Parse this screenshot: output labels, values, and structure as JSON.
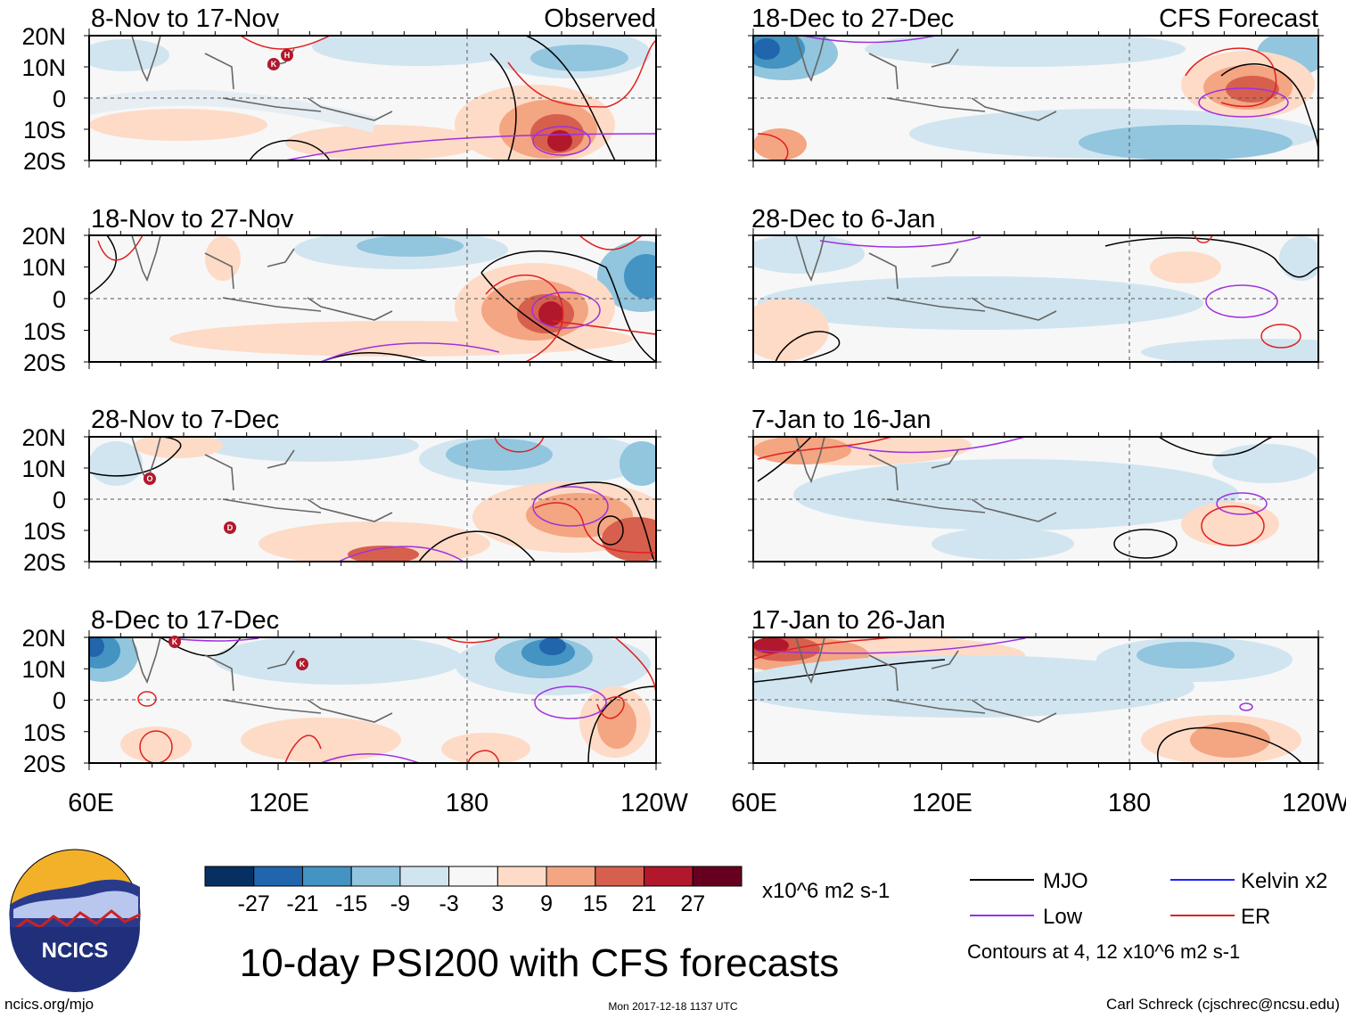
{
  "header": {
    "observed_label": "Observed",
    "forecast_label": "CFS Forecast"
  },
  "panels": [
    {
      "title": "8-Nov to 17-Nov"
    },
    {
      "title": "18-Nov to 27-Nov"
    },
    {
      "title": "28-Nov to 7-Dec"
    },
    {
      "title": "8-Dec to 17-Dec"
    },
    {
      "title": "18-Dec to 27-Dec"
    },
    {
      "title": "28-Dec to 6-Jan"
    },
    {
      "title": "7-Jan to 16-Jan"
    },
    {
      "title": "17-Jan to 26-Jan"
    }
  ],
  "lat_labels": [
    "20N",
    "10N",
    "0",
    "10S",
    "20S"
  ],
  "lon_labels": [
    "60E",
    "120E",
    "180",
    "120W"
  ],
  "colorbar": {
    "colors": [
      "#053061",
      "#2166ac",
      "#4393c3",
      "#92c5de",
      "#d1e5f0",
      "#f7f7f7",
      "#fddbc7",
      "#f4a582",
      "#d6604d",
      "#b2182b",
      "#67001f"
    ],
    "ticks": [
      "-27",
      "-21",
      "-15",
      "-9",
      "-3",
      "3",
      "9",
      "15",
      "21",
      "27"
    ],
    "units": "x10^6 m2 s-1"
  },
  "legend": {
    "items": [
      {
        "label": "MJO",
        "color": "#000000"
      },
      {
        "label": "Kelvin x2",
        "color": "#2020ff"
      },
      {
        "label": "Low",
        "color": "#a030e0"
      },
      {
        "label": "ER",
        "color": "#e02020"
      }
    ],
    "contours_note": "Contours at 4, 12 x10^6 m2 s-1"
  },
  "storm_markers": [
    "K",
    "H",
    "O",
    "D",
    "K",
    "K"
  ],
  "logo_text": "NCICS",
  "main_title": "10-day PSI200 with CFS forecasts",
  "footer": {
    "url": "ncics.org/mjo",
    "timestamp": "Mon 2017-12-18 1137 UTC",
    "credit": "Carl Schreck (cjschrec@ncsu.edu)"
  }
}
